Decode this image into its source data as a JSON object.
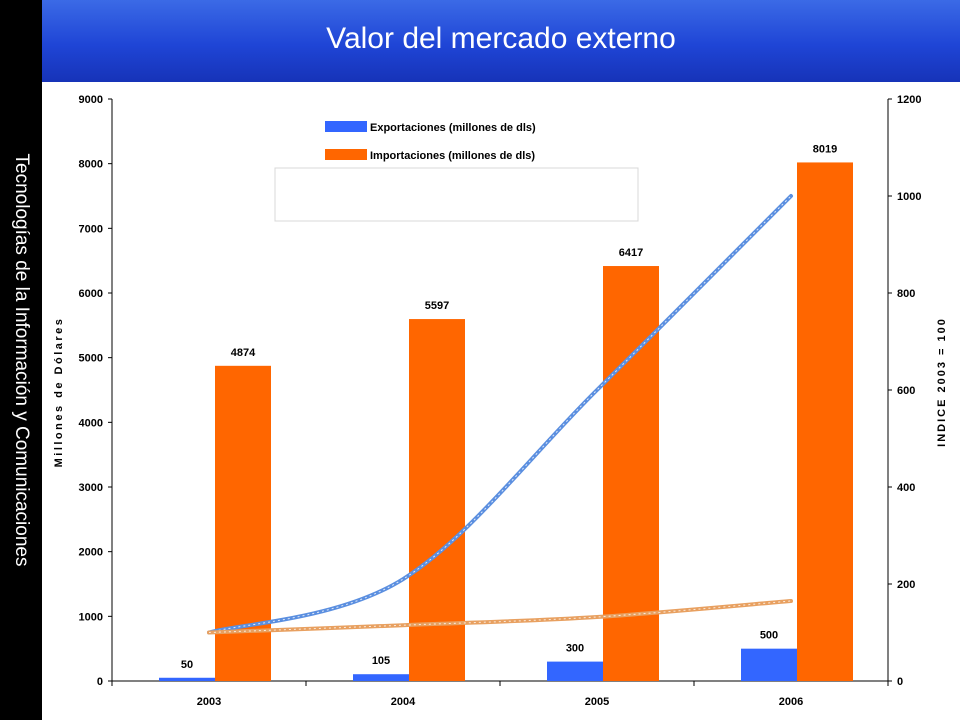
{
  "sidebar": {
    "text": "Tecnologías de la Información y Comunicaciones"
  },
  "header": {
    "title": "Valor del mercado externo"
  },
  "colors": {
    "export": "#3366ff",
    "import": "#ff6600",
    "header": "#1f45d6",
    "line_export": "#5b8fe0",
    "line_import": "#e8a060"
  },
  "chart_data": {
    "type": "bar",
    "categories": [
      "2003",
      "2004",
      "2005",
      "2006"
    ],
    "series": [
      {
        "name": "Exportaciones (millones de dls)",
        "values": [
          50,
          105,
          300,
          500
        ]
      },
      {
        "name": "Importaciones (millones de dls)",
        "values": [
          4874,
          5597,
          6417,
          8019
        ]
      }
    ],
    "index_lines": [
      {
        "values": [
          100,
          210,
          600,
          1000
        ]
      },
      {
        "values": [
          100,
          115,
          132,
          165
        ]
      }
    ],
    "ylabel": "Millones de Dólares",
    "y2label": "INDICE 2003 = 100",
    "ylim": [
      0,
      9000
    ],
    "y2lim": [
      0,
      1200
    ],
    "yticks": [
      0,
      1000,
      2000,
      3000,
      4000,
      5000,
      6000,
      7000,
      8000,
      9000
    ],
    "y2ticks": [
      0,
      200,
      400,
      600,
      800,
      1000,
      1200
    ],
    "legend": "top-center",
    "grid": false
  }
}
